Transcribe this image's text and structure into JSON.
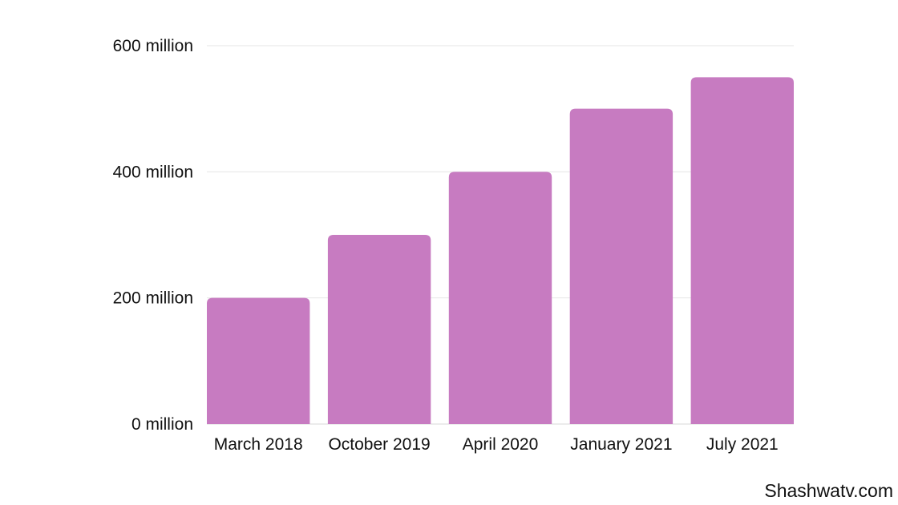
{
  "chart_data": {
    "type": "bar",
    "title": "",
    "xlabel": "",
    "ylabel": "",
    "categories": [
      "March 2018",
      "October 2019",
      "April 2020",
      "January 2021",
      "July 2021"
    ],
    "values": [
      200,
      300,
      400,
      500,
      550
    ],
    "ylim": [
      0,
      600
    ],
    "yticks": [
      0,
      200,
      400,
      600
    ],
    "ytick_labels": [
      "0 million",
      "200 million",
      "400 million",
      "600 million"
    ],
    "grid": true,
    "legend": "none",
    "colors": {
      "bar": "#c77bc1",
      "grid": "#e6e6e6",
      "text": "#111111"
    }
  },
  "watermark": "Shashwatv.com"
}
